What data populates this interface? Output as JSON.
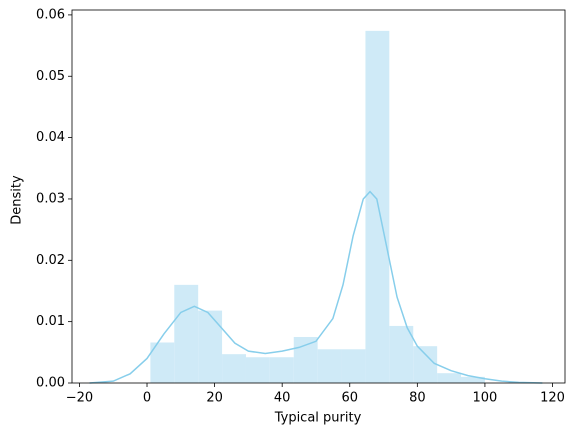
{
  "chart_data": {
    "type": "histogram",
    "xlabel": "Typical purity",
    "ylabel": "Density",
    "bins": [
      1,
      8.07,
      15.14,
      22.21,
      29.29,
      36.36,
      43.43,
      50.5,
      57.57,
      64.64,
      71.71,
      78.79,
      85.86,
      92.93,
      100
    ],
    "values": [
      0.0066,
      0.016,
      0.0118,
      0.0047,
      0.0042,
      0.0042,
      0.0075,
      0.0055,
      0.0055,
      0.0574,
      0.0093,
      0.006,
      0.0016,
      0.001
    ],
    "color": "#cfeaf7",
    "line": {
      "x": [
        -17,
        -10,
        -5,
        0,
        5,
        10,
        14,
        18,
        22,
        26,
        30,
        35,
        40,
        45,
        50,
        55,
        58,
        61,
        64,
        66,
        68,
        71,
        74,
        77,
        80,
        85,
        90,
        95,
        100,
        105,
        110,
        117
      ],
      "values": [
        0,
        0.0003,
        0.0015,
        0.004,
        0.008,
        0.0115,
        0.0125,
        0.0115,
        0.009,
        0.0065,
        0.0052,
        0.0048,
        0.0052,
        0.0058,
        0.0068,
        0.0105,
        0.016,
        0.024,
        0.03,
        0.0312,
        0.03,
        0.022,
        0.014,
        0.009,
        0.006,
        0.0032,
        0.002,
        0.0012,
        0.0007,
        0.0003,
        0.0001,
        0
      ],
      "color": "#87ceeb"
    },
    "xlim": [
      -22.2,
      123.7
    ],
    "xticks": [
      {
        "value": -20,
        "label": "−20"
      },
      0,
      20,
      40,
      60,
      80,
      100,
      120
    ],
    "ylim": [
      0,
      0.0608
    ],
    "yticks": [
      {
        "value": 0,
        "label": "0.00"
      },
      {
        "value": 0.01,
        "label": "0.01"
      },
      {
        "value": 0.02,
        "label": "0.02"
      },
      {
        "value": 0.03,
        "label": "0.03"
      },
      {
        "value": 0.04,
        "label": "0.04"
      },
      {
        "value": 0.05,
        "label": "0.05"
      },
      {
        "value": 0.06,
        "label": "0.06"
      }
    ]
  }
}
